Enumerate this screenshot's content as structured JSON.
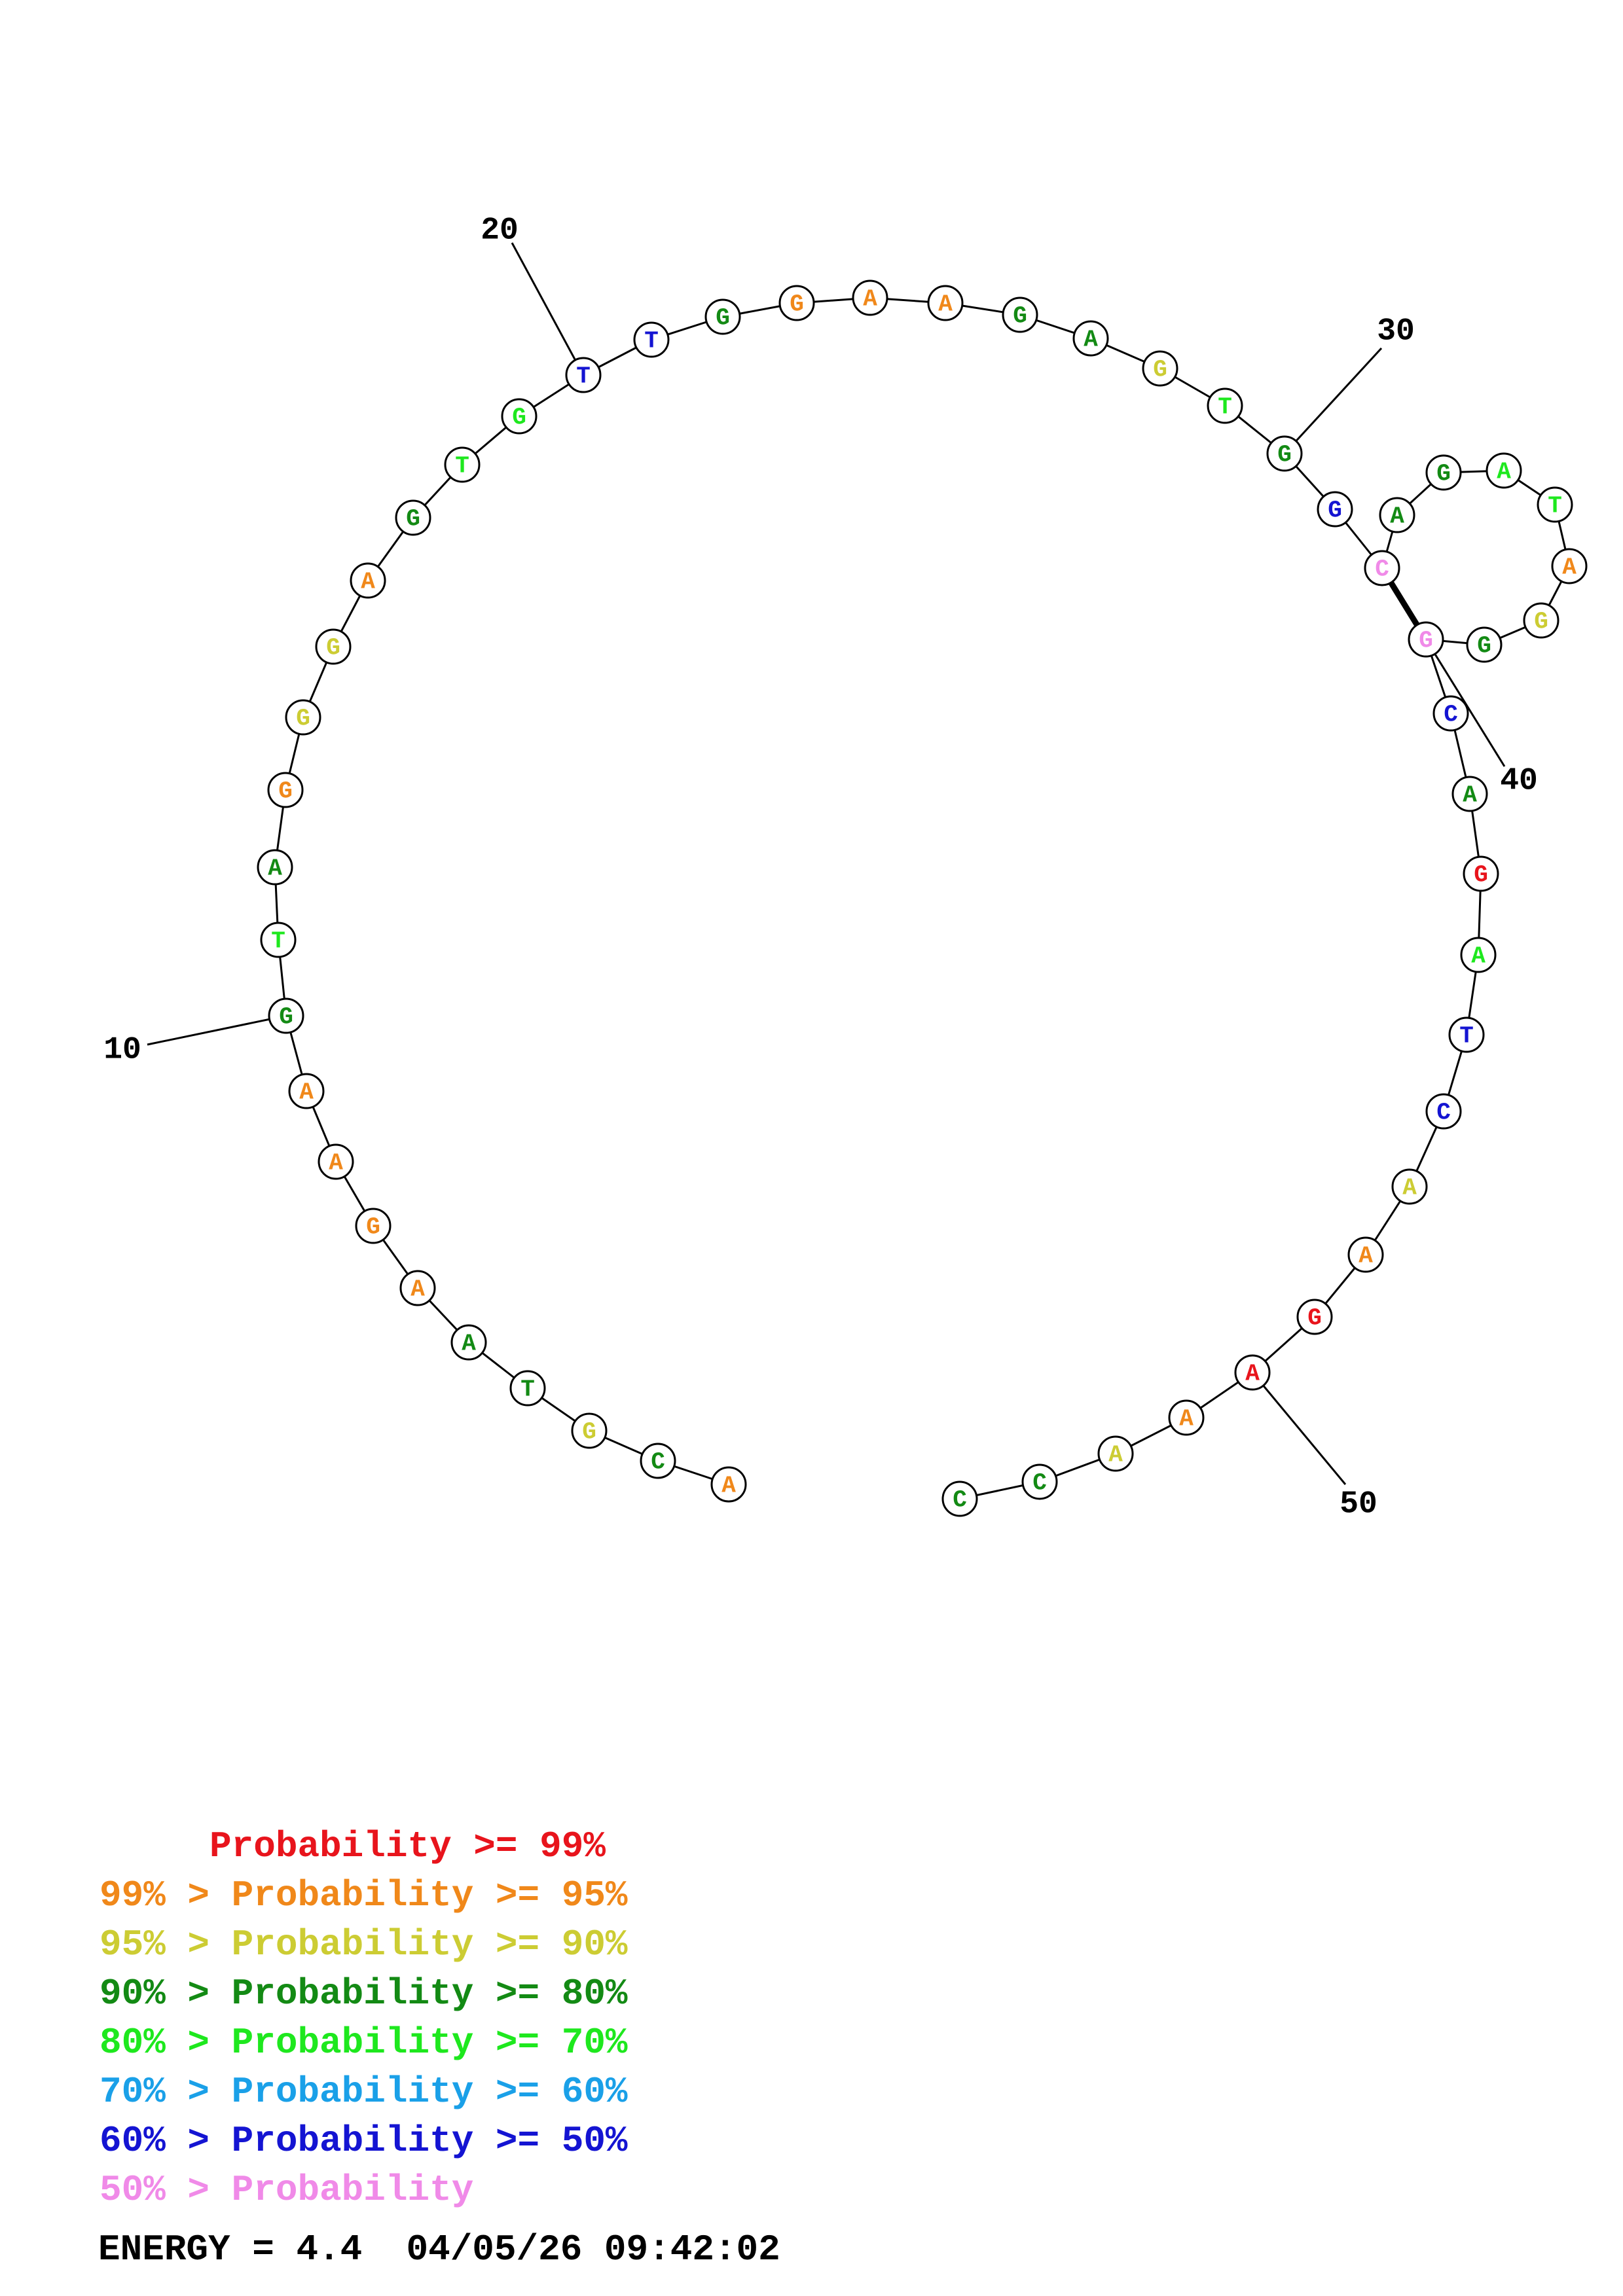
{
  "structure": {
    "bases": [
      {
        "n": 1,
        "b": "A",
        "c": "orange"
      },
      {
        "n": 2,
        "b": "C",
        "c": "darkgreen"
      },
      {
        "n": 3,
        "b": "G",
        "c": "yellow"
      },
      {
        "n": 4,
        "b": "T",
        "c": "darkgreen"
      },
      {
        "n": 5,
        "b": "A",
        "c": "darkgreen"
      },
      {
        "n": 6,
        "b": "A",
        "c": "orange"
      },
      {
        "n": 7,
        "b": "G",
        "c": "orange"
      },
      {
        "n": 8,
        "b": "A",
        "c": "orange"
      },
      {
        "n": 9,
        "b": "A",
        "c": "orange"
      },
      {
        "n": 10,
        "b": "G",
        "c": "darkgreen"
      },
      {
        "n": 11,
        "b": "T",
        "c": "lightgreen"
      },
      {
        "n": 12,
        "b": "A",
        "c": "darkgreen"
      },
      {
        "n": 13,
        "b": "G",
        "c": "orange"
      },
      {
        "n": 14,
        "b": "G",
        "c": "yellow"
      },
      {
        "n": 15,
        "b": "G",
        "c": "yellow"
      },
      {
        "n": 16,
        "b": "A",
        "c": "orange"
      },
      {
        "n": 17,
        "b": "G",
        "c": "darkgreen"
      },
      {
        "n": 18,
        "b": "T",
        "c": "lightgreen"
      },
      {
        "n": 19,
        "b": "G",
        "c": "lightgreen"
      },
      {
        "n": 20,
        "b": "T",
        "c": "blue"
      },
      {
        "n": 21,
        "b": "T",
        "c": "blue"
      },
      {
        "n": 22,
        "b": "G",
        "c": "darkgreen"
      },
      {
        "n": 23,
        "b": "G",
        "c": "orange"
      },
      {
        "n": 24,
        "b": "A",
        "c": "orange"
      },
      {
        "n": 25,
        "b": "A",
        "c": "orange"
      },
      {
        "n": 26,
        "b": "G",
        "c": "darkgreen"
      },
      {
        "n": 27,
        "b": "A",
        "c": "darkgreen"
      },
      {
        "n": 28,
        "b": "G",
        "c": "yellow"
      },
      {
        "n": 29,
        "b": "T",
        "c": "lightgreen"
      },
      {
        "n": 30,
        "b": "G",
        "c": "darkgreen"
      },
      {
        "n": 31,
        "b": "G",
        "c": "blue"
      },
      {
        "n": 32,
        "b": "C",
        "c": "pink"
      },
      {
        "n": 33,
        "b": "A",
        "c": "darkgreen"
      },
      {
        "n": 34,
        "b": "G",
        "c": "darkgreen"
      },
      {
        "n": 35,
        "b": "A",
        "c": "lightgreen"
      },
      {
        "n": 36,
        "b": "T",
        "c": "lightgreen"
      },
      {
        "n": 37,
        "b": "A",
        "c": "orange"
      },
      {
        "n": 38,
        "b": "G",
        "c": "yellow"
      },
      {
        "n": 39,
        "b": "G",
        "c": "darkgreen"
      },
      {
        "n": 40,
        "b": "G",
        "c": "pink"
      },
      {
        "n": 41,
        "b": "C",
        "c": "blue"
      },
      {
        "n": 42,
        "b": "A",
        "c": "darkgreen"
      },
      {
        "n": 43,
        "b": "G",
        "c": "red"
      },
      {
        "n": 44,
        "b": "A",
        "c": "lightgreen"
      },
      {
        "n": 45,
        "b": "T",
        "c": "blue"
      },
      {
        "n": 46,
        "b": "C",
        "c": "blue"
      },
      {
        "n": 47,
        "b": "A",
        "c": "yellow"
      },
      {
        "n": 48,
        "b": "A",
        "c": "orange"
      },
      {
        "n": 49,
        "b": "G",
        "c": "red"
      },
      {
        "n": 50,
        "b": "A",
        "c": "red"
      },
      {
        "n": 51,
        "b": "A",
        "c": "orange"
      },
      {
        "n": 52,
        "b": "A",
        "c": "yellow"
      },
      {
        "n": 53,
        "b": "C",
        "c": "darkgreen"
      },
      {
        "n": 54,
        "b": "C",
        "c": "darkgreen"
      }
    ],
    "pairs": [
      [
        32,
        40
      ]
    ],
    "index_labels": [
      "10",
      "20",
      "30",
      "40",
      "50"
    ]
  },
  "colors": {
    "red": "#e8141c",
    "orange": "#f0881a",
    "yellow": "#cccc33",
    "darkgreen": "#138a14",
    "lightgreen": "#1ee81e",
    "cyan": "#1aa0e8",
    "blue": "#1414d2",
    "pink": "#f08ae8"
  },
  "legend": {
    "rows": [
      {
        "text": "     Probability >= 99%",
        "color": "red"
      },
      {
        "text": "99% > Probability >= 95%",
        "color": "orange"
      },
      {
        "text": "95% > Probability >= 90%",
        "color": "yellow"
      },
      {
        "text": "90% > Probability >= 80%",
        "color": "darkgreen"
      },
      {
        "text": "80% > Probability >= 70%",
        "color": "lightgreen"
      },
      {
        "text": "70% > Probability >= 60%",
        "color": "cyan"
      },
      {
        "text": "60% > Probability >= 50%",
        "color": "blue"
      },
      {
        "text": "50% > Probability",
        "color": "pink"
      }
    ],
    "energy": "ENERGY = 4.4  04/05/26 09:42:02"
  }
}
